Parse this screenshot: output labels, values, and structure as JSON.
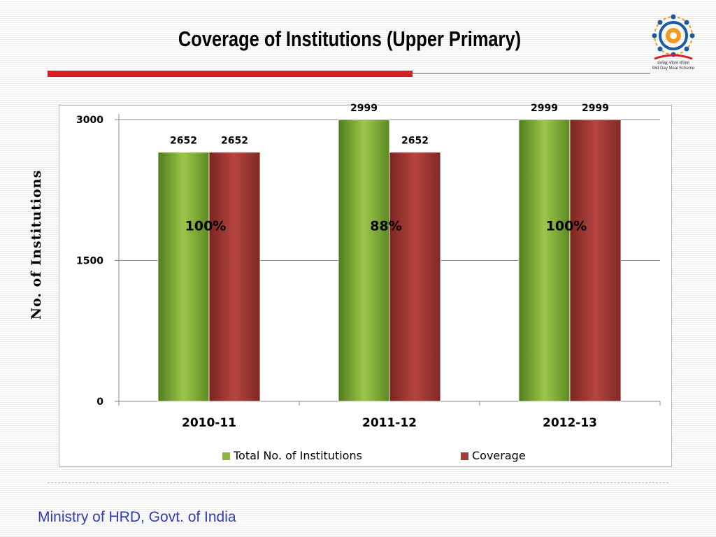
{
  "slide": {
    "title": "Coverage of Institutions (Upper Primary)",
    "footer": "Ministry of HRD, Govt. of India",
    "logo_caption_line1": "मध्याह्न भोजन योजना",
    "logo_caption_line2": "Mid Day Meal Scheme"
  },
  "colors": {
    "title_rule": "#d62027",
    "total_series": "#8cb63c",
    "coverage_series": "#a23b3a",
    "footer_text": "#2f3cb5"
  },
  "chart_data": {
    "type": "bar",
    "title": "",
    "xlabel": "",
    "ylabel": "No. of Institutions",
    "ylim": [
      0,
      3000
    ],
    "yticks": [
      "0",
      "1500",
      "3000"
    ],
    "categories": [
      "2010-11",
      "2011-12",
      "2012-13"
    ],
    "series": [
      {
        "name": "Total No. of Institutions",
        "values": [
          2652,
          2999,
          2999
        ]
      },
      {
        "name": "Coverage",
        "values": [
          2652,
          2652,
          2999
        ]
      }
    ],
    "annotations": [
      "100%",
      "88%",
      "100%"
    ],
    "legend": "bottom",
    "grid": true
  }
}
